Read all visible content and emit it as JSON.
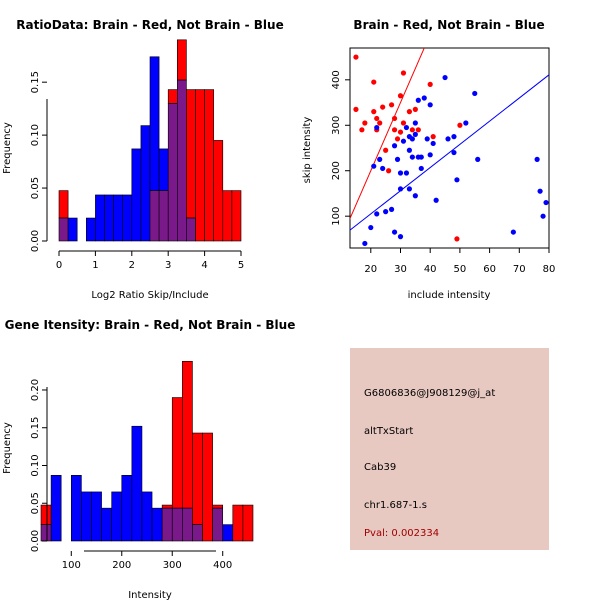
{
  "colors": {
    "red": "#ff0000",
    "blue": "#0000ff",
    "overlap": "#7a1a8a",
    "panel": "#e8c9c2",
    "pval": "#a00000"
  },
  "chart_data": [
    {
      "type": "bar",
      "title": "RatioData: Brain - Red, Not Brain - Blue",
      "xlabel": "Log2 Ratio Skip/Include",
      "ylabel": "Frequency",
      "xlim": [
        0,
        5
      ],
      "ylim": [
        0,
        0.17
      ],
      "xticks": [
        "0",
        "1",
        "2",
        "3",
        "4",
        "5"
      ],
      "yticks": [
        "0.00",
        "0.05",
        "0.10",
        "0.15"
      ],
      "bin_start": 0,
      "bin_width": 0.25,
      "series": [
        {
          "name": "Brain",
          "values": [
            0.0476,
            0,
            0,
            0,
            0,
            0,
            0,
            0,
            0,
            0,
            0.0476,
            0.0476,
            0.143,
            0.19,
            0.143,
            0.143,
            0.143,
            0.095,
            0.0476,
            0.0476
          ]
        },
        {
          "name": "Not Brain",
          "values": [
            0.0217,
            0.0217,
            0,
            0.0217,
            0.0435,
            0.0435,
            0.0435,
            0.0435,
            0.087,
            0.109,
            0.174,
            0.087,
            0.13,
            0.152,
            0.0217,
            0,
            0,
            0,
            0,
            0
          ]
        }
      ]
    },
    {
      "type": "scatter",
      "title": "Brain - Red, Not Brain - Blue",
      "xlabel": "include intensity",
      "ylabel": "skip intensity",
      "xlim": [
        13,
        80
      ],
      "ylim": [
        30,
        470
      ],
      "xticks": [
        20,
        30,
        40,
        50,
        60,
        70,
        80
      ],
      "yticks": [
        100,
        200,
        300,
        400
      ],
      "series": [
        {
          "name": "Brain",
          "lines": {
            "intercept": -100,
            "slope": 15
          },
          "points": [
            [
              15,
              450
            ],
            [
              15,
              335
            ],
            [
              17,
              290
            ],
            [
              18,
              305
            ],
            [
              21,
              395
            ],
            [
              21,
              330
            ],
            [
              22,
              290
            ],
            [
              22,
              315
            ],
            [
              23,
              305
            ],
            [
              24,
              340
            ],
            [
              25,
              245
            ],
            [
              26,
              200
            ],
            [
              27,
              345
            ],
            [
              28,
              315
            ],
            [
              28,
              290
            ],
            [
              29,
              270
            ],
            [
              30,
              365
            ],
            [
              30,
              285
            ],
            [
              31,
              415
            ],
            [
              31,
              305
            ],
            [
              33,
              330
            ],
            [
              34,
              290
            ],
            [
              35,
              335
            ],
            [
              36,
              290
            ],
            [
              40,
              390
            ],
            [
              41,
              275
            ],
            [
              49,
              50
            ],
            [
              50,
              300
            ]
          ]
        },
        {
          "name": "Not Brain",
          "lines": {
            "intercept": 3,
            "slope": 5.1
          },
          "points": [
            [
              18,
              40
            ],
            [
              20,
              75
            ],
            [
              21,
              210
            ],
            [
              22,
              105
            ],
            [
              22,
              295
            ],
            [
              23,
              225
            ],
            [
              24,
              205
            ],
            [
              25,
              110
            ],
            [
              27,
              115
            ],
            [
              28,
              65
            ],
            [
              28,
              255
            ],
            [
              29,
              225
            ],
            [
              30,
              55
            ],
            [
              30,
              195
            ],
            [
              30,
              160
            ],
            [
              31,
              265
            ],
            [
              32,
              195
            ],
            [
              32,
              295
            ],
            [
              33,
              160
            ],
            [
              33,
              245
            ],
            [
              33,
              275
            ],
            [
              34,
              270
            ],
            [
              34,
              230
            ],
            [
              35,
              145
            ],
            [
              35,
              305
            ],
            [
              35,
              280
            ],
            [
              36,
              355
            ],
            [
              36,
              230
            ],
            [
              37,
              230
            ],
            [
              37,
              205
            ],
            [
              38,
              360
            ],
            [
              39,
              270
            ],
            [
              40,
              345
            ],
            [
              40,
              235
            ],
            [
              41,
              260
            ],
            [
              42,
              135
            ],
            [
              45,
              405
            ],
            [
              46,
              270
            ],
            [
              48,
              275
            ],
            [
              48,
              240
            ],
            [
              49,
              180
            ],
            [
              52,
              305
            ],
            [
              55,
              370
            ],
            [
              56,
              225
            ],
            [
              68,
              65
            ],
            [
              76,
              225
            ],
            [
              77,
              155
            ],
            [
              78,
              100
            ],
            [
              79,
              130
            ]
          ]
        }
      ]
    },
    {
      "type": "bar",
      "title": "Gene Itensity: Brain - Red, Not Brain - Blue",
      "xlabel": "Intensity",
      "ylabel": "Frequency",
      "xlim": [
        40,
        460
      ],
      "ylim": [
        0,
        0.245
      ],
      "xticks": [
        "100",
        "200",
        "300",
        "400"
      ],
      "yticks": [
        "0.00",
        "0.05",
        "0.10",
        "0.15",
        "0.20"
      ],
      "bin_start": 40,
      "bin_width": 20,
      "series": [
        {
          "name": "Brain",
          "values": [
            0.0476,
            0,
            0,
            0,
            0,
            0,
            0,
            0,
            0,
            0,
            0,
            0,
            0.0476,
            0.19,
            0.238,
            0.143,
            0.143,
            0.0476,
            0,
            0.0476,
            0.0476
          ]
        },
        {
          "name": "Not Brain",
          "values": [
            0.0217,
            0.087,
            0,
            0.087,
            0.065,
            0.065,
            0.0435,
            0.065,
            0.087,
            0.152,
            0.065,
            0.0435,
            0.0435,
            0.0435,
            0.0435,
            0.0217,
            0,
            0.0435,
            0.0217,
            0,
            0
          ]
        }
      ]
    }
  ],
  "info": {
    "probe_id": "G6806836@J908129@j_at",
    "event_type": "altTxStart",
    "gene": "Cab39",
    "locus": "chr1.687-1.s",
    "pval": "Pval: 0.002334"
  }
}
